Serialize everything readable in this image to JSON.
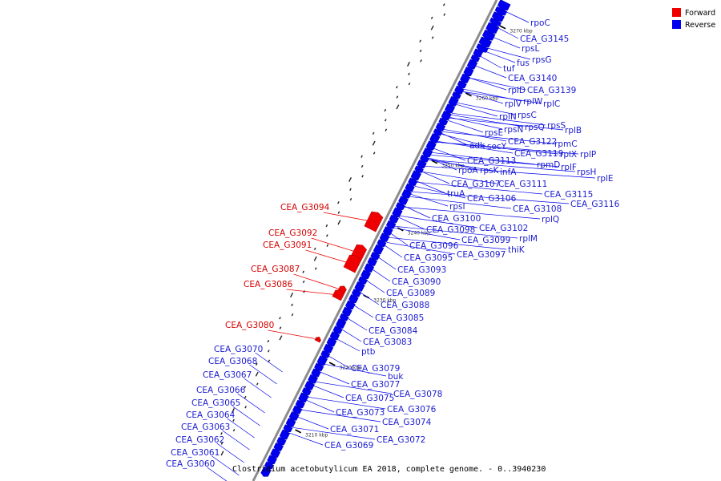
{
  "caption": "Clostridium acetobutylicum EA 2018, complete genome. - 0..3940230",
  "legend": [
    {
      "label": "Forward",
      "color": "#ee0000"
    },
    {
      "label": "Reverse",
      "color": "#0000ee"
    }
  ],
  "colors": {
    "forward": "#ee0000",
    "reverse": "#0000ee",
    "forward_label": "#d40000",
    "reverse_label": "#1a1ad0",
    "backbone": "#8c8c8c"
  },
  "scale_ticks": [
    {
      "label": "3210 kbp",
      "pos": 0.12
    },
    {
      "label": "3220 kbp",
      "pos": 0.26
    },
    {
      "label": "3230 kbp",
      "pos": 0.4
    },
    {
      "label": "3240 kbp",
      "pos": 0.54
    },
    {
      "label": "3250 kbp",
      "pos": 0.68
    },
    {
      "label": "3260 kbp",
      "pos": 0.82
    },
    {
      "label": "3270 kbp",
      "pos": 0.96
    }
  ],
  "forward_genes": [
    "CEA_G3094",
    "CEA_G3092",
    "CEA_G3091",
    "CEA_G3087",
    "CEA_G3086",
    "CEA_G3080"
  ],
  "reverse_genes": [
    "rpoC",
    "CEA_G3145",
    "rpsL",
    "rpsG",
    "fus",
    "tuf",
    "CEA_G3140",
    "rplD",
    "CEA_G3139",
    "rplV",
    "rplW",
    "rplC",
    "rplN",
    "rpsC",
    "rpsS",
    "rpsN",
    "rpsQ",
    "rplB",
    "rpsE",
    "CEA_G3122",
    "rpmC",
    "adk",
    "secY",
    "CEA_G3119",
    "rplX",
    "rplP",
    "rpmD",
    "rplF",
    "CEA_G3113",
    "rpsH",
    "rplE",
    "rpoA",
    "rpsK",
    "infA",
    "CEA_G3107",
    "CEA_G3111",
    "truA",
    "CEA_G3115",
    "CEA_G3106",
    "CEA_G3116",
    "rpsI",
    "CEA_G3108",
    "CEA_G3100",
    "rplQ",
    "CEA_G3102",
    "CEA_G3098",
    "CEA_G3099",
    "rplM",
    "CEA_G3096",
    "thiK",
    "CEA_G3095",
    "CEA_G3097",
    "CEA_G3093",
    "CEA_G3090",
    "CEA_G3089",
    "CEA_G3088",
    "CEA_G3085",
    "CEA_G3084",
    "CEA_G3083",
    "ptb",
    "CEA_G3079",
    "buk",
    "CEA_G3077",
    "CEA_G3078",
    "CEA_G3075",
    "CEA_G3076",
    "CEA_G3073",
    "CEA_G3074",
    "CEA_G3071",
    "CEA_G3072",
    "CEA_G3069",
    "CEA_G3070",
    "CEA_G3068",
    "CEA_G3067",
    "CEA_G3066",
    "CEA_G3065",
    "CEA_G3064",
    "CEA_G3063",
    "CEA_G3062",
    "CEA_G3061",
    "CEA_G3060"
  ]
}
